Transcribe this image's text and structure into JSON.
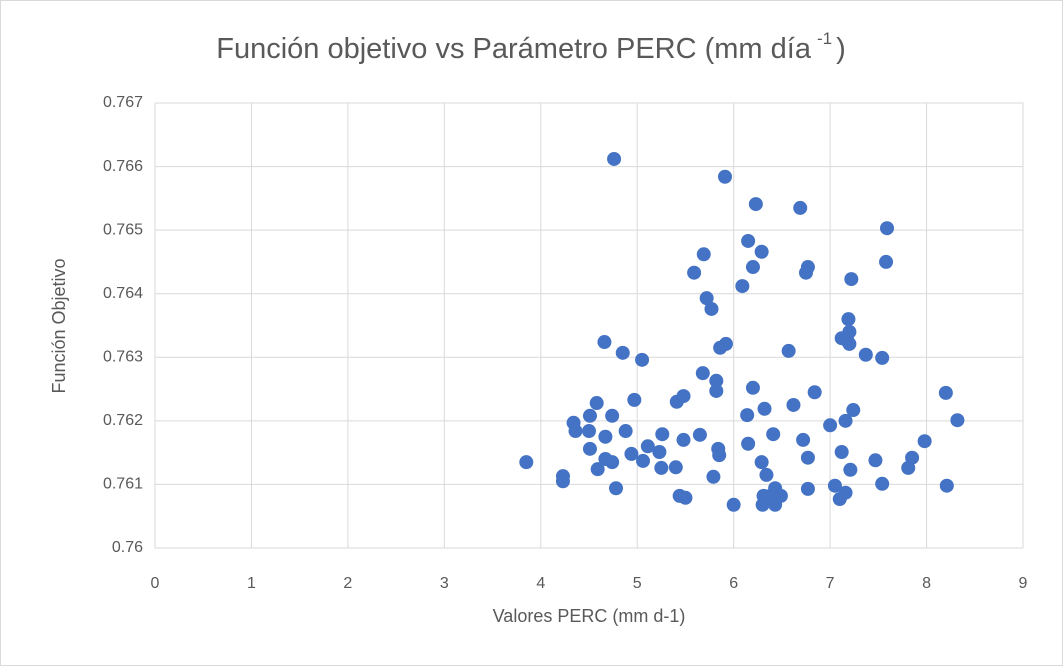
{
  "chart_data": {
    "type": "scatter",
    "title": "Función objetivo vs Parámetro PERC (mm día",
    "title_superscript": "-1",
    "title_end": ")",
    "x_label": "Valores PERC (mm d-1)",
    "y_label": "Función Objetivo",
    "xlim": [
      0,
      9
    ],
    "ylim": [
      0.76,
      0.767
    ],
    "xticks": [
      0,
      1,
      2,
      3,
      4,
      5,
      6,
      7,
      8,
      9
    ],
    "yticks": [
      0.76,
      0.761,
      0.762,
      0.763,
      0.764,
      0.765,
      0.766,
      0.767
    ],
    "grid": true,
    "color": "#4472c4",
    "x": [
      3.85,
      4.23,
      4.23,
      4.34,
      4.36,
      4.51,
      4.5,
      4.51,
      4.58,
      4.59,
      4.66,
      4.67,
      4.67,
      4.74,
      4.74,
      4.76,
      4.78,
      4.85,
      4.88,
      4.94,
      4.97,
      5.05,
      5.06,
      5.11,
      5.23,
      5.26,
      5.25,
      5.4,
      5.41,
      5.48,
      5.48,
      5.44,
      5.5,
      5.59,
      5.65,
      5.68,
      5.69,
      5.72,
      5.77,
      5.79,
      5.82,
      5.82,
      5.84,
      5.85,
      5.86,
      5.92,
      5.91,
      6.0,
      6.09,
      6.14,
      6.15,
      6.15,
      6.2,
      6.2,
      6.23,
      6.29,
      6.29,
      6.32,
      6.34,
      6.31,
      6.3,
      6.38,
      6.41,
      6.43,
      6.43,
      6.49,
      6.57,
      6.62,
      6.69,
      6.72,
      6.75,
      6.77,
      6.77,
      6.77,
      6.84,
      7.0,
      7.05,
      7.1,
      7.12,
      7.12,
      7.16,
      7.16,
      7.18,
      7.19,
      7.2,
      7.2,
      7.21,
      7.22,
      7.24,
      7.37,
      7.47,
      7.54,
      7.54,
      7.58,
      7.59,
      7.81,
      7.85,
      7.98,
      8.2,
      8.21,
      8.32
    ],
    "values": [
      0.76135,
      0.76113,
      0.76105,
      0.76197,
      0.76184,
      0.76208,
      0.76184,
      0.76156,
      0.76228,
      0.76124,
      0.76324,
      0.76175,
      0.7614,
      0.76135,
      0.76208,
      0.76612,
      0.76094,
      0.76307,
      0.76184,
      0.76148,
      0.76233,
      0.76296,
      0.76137,
      0.7616,
      0.76151,
      0.76179,
      0.76126,
      0.76127,
      0.7623,
      0.76239,
      0.7617,
      0.76082,
      0.76079,
      0.76433,
      0.76178,
      0.76275,
      0.76462,
      0.76393,
      0.76376,
      0.76112,
      0.76263,
      0.76247,
      0.76156,
      0.76146,
      0.76315,
      0.76321,
      0.76584,
      0.76068,
      0.76412,
      0.76209,
      0.76164,
      0.76483,
      0.76252,
      0.76442,
      0.76541,
      0.76466,
      0.76135,
      0.76219,
      0.76115,
      0.76082,
      0.76068,
      0.76082,
      0.76179,
      0.76094,
      0.76068,
      0.76082,
      0.7631,
      0.76225,
      0.76535,
      0.7617,
      0.76433,
      0.76442,
      0.76142,
      0.76093,
      0.76245,
      0.76193,
      0.76098,
      0.76077,
      0.7633,
      0.76151,
      0.762,
      0.76087,
      0.76326,
      0.7636,
      0.7634,
      0.76321,
      0.76123,
      0.76423,
      0.76217,
      0.76304,
      0.76138,
      0.76299,
      0.76101,
      0.7645,
      0.76503,
      0.76126,
      0.76142,
      0.76168,
      0.76244,
      0.76098,
      0.76201
    ]
  }
}
